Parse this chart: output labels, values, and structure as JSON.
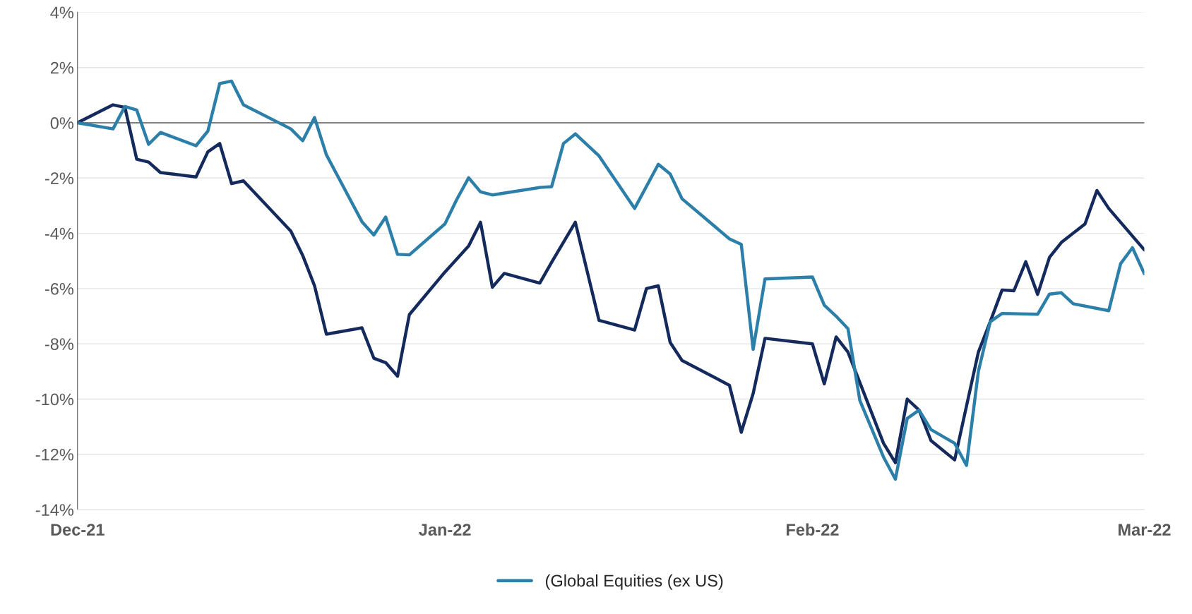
{
  "chart_data": {
    "type": "line",
    "xlim": [
      "2021-12-01",
      "2022-03-01"
    ],
    "xticks": [
      {
        "value": "2021-12-01",
        "label": "Dec-21"
      },
      {
        "value": "2022-01-01",
        "label": "Jan-22"
      },
      {
        "value": "2022-02-01",
        "label": "Feb-22"
      },
      {
        "value": "2022-03-01",
        "label": "Mar-22"
      }
    ],
    "ylim": [
      -14,
      4
    ],
    "yticks": [
      {
        "value": -14,
        "label": "-14%"
      },
      {
        "value": -12,
        "label": "-12%"
      },
      {
        "value": -10,
        "label": "-10%"
      },
      {
        "value": -8,
        "label": "-8%"
      },
      {
        "value": -6,
        "label": "-6%"
      },
      {
        "value": -4,
        "label": "-4%"
      },
      {
        "value": -2,
        "label": "-2%"
      },
      {
        "value": 0,
        "label": "0%"
      },
      {
        "value": 2,
        "label": "2%"
      },
      {
        "value": 4,
        "label": "4%"
      }
    ],
    "grid": "y",
    "legend": "bottom",
    "marker": "none",
    "line_style": "solid",
    "ref_lines": [
      {
        "axis": "y",
        "value": 0,
        "color": "#7f7f7f"
      }
    ],
    "series": [
      {
        "color": "#142a5c",
        "x": [
          "2021-12-01",
          "2021-12-04",
          "2021-12-05",
          "2021-12-06",
          "2021-12-07",
          "2021-12-08",
          "2021-12-11",
          "2021-12-12",
          "2021-12-13",
          "2021-12-14",
          "2021-12-15",
          "2021-12-19",
          "2021-12-20",
          "2021-12-21",
          "2021-12-22",
          "2021-12-25",
          "2021-12-26",
          "2021-12-27",
          "2021-12-28",
          "2021-12-29",
          "2022-01-01",
          "2022-01-03",
          "2022-01-04",
          "2022-01-05",
          "2022-01-06",
          "2022-01-09",
          "2022-01-10",
          "2022-01-12",
          "2022-01-14",
          "2022-01-17",
          "2022-01-18",
          "2022-01-19",
          "2022-01-20",
          "2022-01-21",
          "2022-01-25",
          "2022-01-26",
          "2022-01-27",
          "2022-01-28",
          "2022-02-01",
          "2022-02-02",
          "2022-02-03",
          "2022-02-04",
          "2022-02-07",
          "2022-02-08",
          "2022-02-09",
          "2022-02-10",
          "2022-02-11",
          "2022-02-13",
          "2022-02-15",
          "2022-02-16",
          "2022-02-17",
          "2022-02-18",
          "2022-02-19",
          "2022-02-20",
          "2022-02-21",
          "2022-02-22",
          "2022-02-24",
          "2022-02-25",
          "2022-02-26",
          "2022-03-01"
        ],
        "values": [
          0,
          0.65,
          0.56,
          -1.32,
          -1.42,
          -1.8,
          -1.96,
          -1.05,
          -0.75,
          -2.2,
          -2.1,
          -3.92,
          -4.8,
          -5.9,
          -7.65,
          -7.42,
          -8.52,
          -8.68,
          -9.17,
          -6.94,
          -5.4,
          -4.46,
          -3.6,
          -5.95,
          -5.45,
          -5.8,
          -5.05,
          -3.6,
          -7.15,
          -7.5,
          -6.0,
          -5.9,
          -7.95,
          -8.6,
          -9.5,
          -11.2,
          -9.8,
          -7.8,
          -8.0,
          -9.45,
          -7.75,
          -8.3,
          -11.6,
          -12.3,
          -10.0,
          -10.4,
          -11.5,
          -12.2,
          -8.3,
          -7.2,
          -6.05,
          -6.08,
          -5.03,
          -6.21,
          -4.87,
          -4.33,
          -3.66,
          -2.45,
          -3.1,
          -4.6
        ]
      },
      {
        "name": "(Global Equities (ex US)",
        "color": "#2b7fa8",
        "x": [
          "2021-12-01",
          "2021-12-04",
          "2021-12-05",
          "2021-12-06",
          "2021-12-07",
          "2021-12-08",
          "2021-12-11",
          "2021-12-12",
          "2021-12-13",
          "2021-12-14",
          "2021-12-15",
          "2021-12-19",
          "2021-12-20",
          "2021-12-21",
          "2021-12-22",
          "2021-12-25",
          "2021-12-26",
          "2021-12-27",
          "2021-12-28",
          "2021-12-29",
          "2022-01-01",
          "2022-01-02",
          "2022-01-03",
          "2022-01-04",
          "2022-01-05",
          "2022-01-09",
          "2022-01-10",
          "2022-01-11",
          "2022-01-12",
          "2022-01-14",
          "2022-01-17",
          "2022-01-19",
          "2022-01-20",
          "2022-01-21",
          "2022-01-25",
          "2022-01-26",
          "2022-01-27",
          "2022-01-28",
          "2022-02-01",
          "2022-02-02",
          "2022-02-03",
          "2022-02-04",
          "2022-02-05",
          "2022-02-07",
          "2022-02-08",
          "2022-02-09",
          "2022-02-10",
          "2022-02-11",
          "2022-02-13",
          "2022-02-14",
          "2022-02-15",
          "2022-02-16",
          "2022-02-17",
          "2022-02-20",
          "2022-02-21",
          "2022-02-22",
          "2022-02-23",
          "2022-02-26",
          "2022-02-27",
          "2022-02-28",
          "2022-03-01"
        ],
        "values": [
          0,
          -0.22,
          0.59,
          0.46,
          -0.78,
          -0.35,
          -0.83,
          -0.3,
          1.42,
          1.51,
          0.65,
          -0.22,
          -0.65,
          0.19,
          -1.16,
          -3.58,
          -4.06,
          -3.41,
          -4.76,
          -4.78,
          -3.66,
          -2.77,
          -1.99,
          -2.5,
          -2.61,
          -2.34,
          -2.31,
          -0.75,
          -0.4,
          -1.2,
          -3.1,
          -1.5,
          -1.85,
          -2.75,
          -4.2,
          -4.4,
          -8.2,
          -5.65,
          -5.58,
          -6.6,
          -7.0,
          -7.45,
          -10.05,
          -12.1,
          -12.9,
          -10.7,
          -10.4,
          -11.1,
          -11.6,
          -12.4,
          -9.0,
          -7.2,
          -6.9,
          -6.93,
          -6.2,
          -6.15,
          -6.55,
          -6.8,
          -5.1,
          -4.52,
          -5.46
        ]
      }
    ]
  }
}
